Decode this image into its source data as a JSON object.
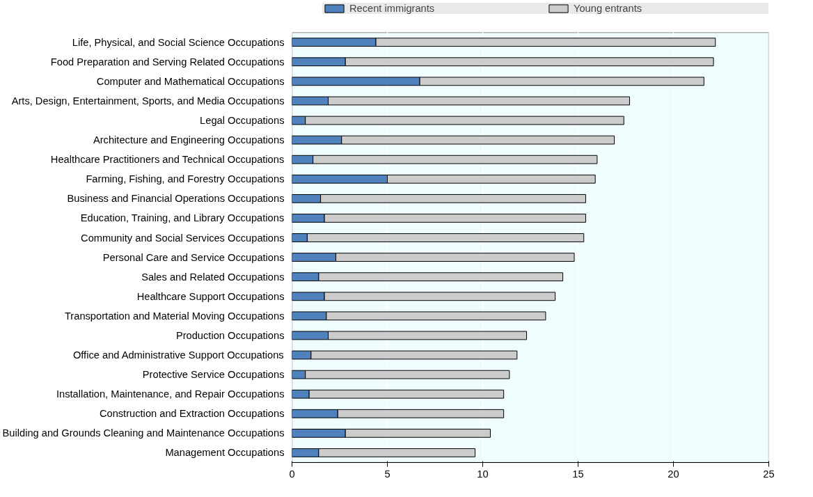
{
  "chart_data": {
    "type": "bar",
    "orientation": "horizontal",
    "stacked": true,
    "categories": [
      "Life, Physical, and Social Science Occupations",
      "Food Preparation and Serving Related Occupations",
      "Computer and Mathematical Occupations",
      "Arts, Design, Entertainment, Sports, and Media Occupations",
      "Legal Occupations",
      "Architecture and Engineering Occupations",
      "Healthcare Practitioners and Technical Occupations",
      "Farming, Fishing, and Forestry Occupations",
      "Business and Financial Operations Occupations",
      "Education, Training, and Library Occupations",
      "Community and Social Services Occupations",
      "Personal Care and Service Occupations",
      "Sales and Related Occupations",
      "Healthcare Support Occupations",
      "Transportation and Material Moving Occupations",
      "Production Occupations",
      "Office and Administrative Support Occupations",
      "Protective Service Occupations",
      "Installation, Maintenance, and Repair Occupations",
      "Construction and Extraction Occupations",
      "Building and Grounds Cleaning and Maintenance Occupations",
      "Management Occupations"
    ],
    "series": [
      {
        "name": "Recent immigrants",
        "color": "#4f81bd",
        "values": [
          4.4,
          2.8,
          6.7,
          1.9,
          0.7,
          2.6,
          1.1,
          5.0,
          1.5,
          1.7,
          0.8,
          2.3,
          1.4,
          1.7,
          1.8,
          1.9,
          1.0,
          0.7,
          0.9,
          2.4,
          2.8,
          1.4
        ]
      },
      {
        "name": "Young entrants",
        "color": "#cccccc",
        "values": [
          17.8,
          19.3,
          14.9,
          15.8,
          16.7,
          14.3,
          14.9,
          10.9,
          13.9,
          13.7,
          14.5,
          12.5,
          12.8,
          12.1,
          11.5,
          10.4,
          10.8,
          10.7,
          10.2,
          8.7,
          7.6,
          8.2
        ]
      }
    ],
    "xlim": [
      0,
      25
    ],
    "xticks": [
      0,
      5,
      10,
      15,
      20,
      25
    ],
    "grid": "x",
    "legend": "top"
  }
}
